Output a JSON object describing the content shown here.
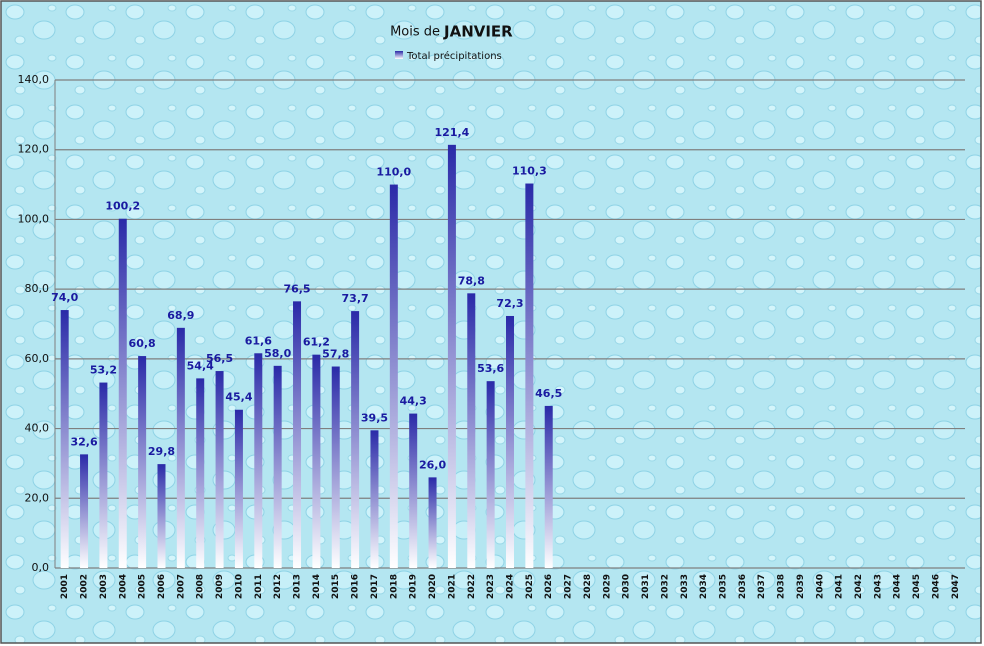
{
  "chart_data": {
    "type": "bar",
    "title_prefix": "Mois de",
    "title_month": "JANVIER",
    "categories": [
      "2001",
      "2002",
      "2003",
      "2004",
      "2005",
      "2006",
      "2007",
      "2008",
      "2009",
      "2010",
      "2011",
      "2012",
      "2013",
      "2014",
      "2015",
      "2016",
      "2017",
      "2018",
      "2019",
      "2020",
      "2021",
      "2022",
      "2023",
      "2024",
      "2025",
      "2026",
      "2027",
      "2028",
      "2029",
      "2030",
      "2031",
      "2032",
      "2033",
      "2034",
      "2035",
      "2036",
      "2037",
      "2038",
      "2039",
      "2040",
      "2041",
      "2042",
      "2043",
      "2044",
      "2045",
      "2046",
      "2047"
    ],
    "series": [
      {
        "name": "Total précipitations",
        "color": "#2a2aa8",
        "values": [
          74.0,
          32.6,
          53.2,
          100.2,
          60.8,
          29.8,
          68.9,
          54.4,
          56.5,
          45.4,
          61.6,
          58.0,
          76.5,
          61.2,
          57.8,
          73.7,
          39.5,
          110.0,
          44.3,
          26.0,
          121.4,
          78.8,
          53.6,
          72.3,
          110.3,
          46.5,
          null,
          null,
          null,
          null,
          null,
          null,
          null,
          null,
          null,
          null,
          null,
          null,
          null,
          null,
          null,
          null,
          null,
          null,
          null,
          null,
          null
        ],
        "value_labels": [
          "74,0",
          "32,6",
          "53,2",
          "100,2",
          "60,8",
          "29,8",
          "68,9",
          "54,4",
          "56,5",
          "45,4",
          "61,6",
          "58,0",
          "76,5",
          "61,2",
          "57,8",
          "73,7",
          "39,5",
          "110,0",
          "44,3",
          "26,0",
          "121,4",
          "78,8",
          "53,6",
          "72,3",
          "110,3",
          "46,5",
          null,
          null,
          null,
          null,
          null,
          null,
          null,
          null,
          null,
          null,
          null,
          null,
          null,
          null,
          null,
          null,
          null,
          null,
          null,
          null,
          null
        ]
      }
    ],
    "ylim": [
      0,
      140
    ],
    "yticks": [
      {
        "value": 0,
        "label": "0,0"
      },
      {
        "value": 20,
        "label": "20,0"
      },
      {
        "value": 40,
        "label": "40,0"
      },
      {
        "value": 60,
        "label": "60,0"
      },
      {
        "value": 80,
        "label": "80,0"
      },
      {
        "value": 100,
        "label": "100,0"
      },
      {
        "value": 120,
        "label": "120,0"
      },
      {
        "value": 140,
        "label": "140,0"
      }
    ],
    "grid": true
  }
}
